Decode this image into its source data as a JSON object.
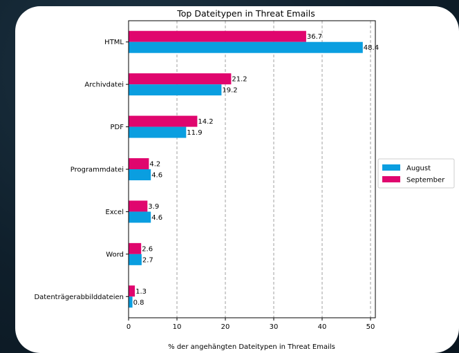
{
  "chart_data": {
    "type": "bar",
    "orientation": "horizontal",
    "title": "Top Dateitypen in Threat Emails",
    "xlabel": "% der angehängten Dateitypen in Threat Emails",
    "ylabel": "",
    "categories": [
      "HTML",
      "Archivdatei",
      "PDF",
      "Programmdatei",
      "Excel",
      "Word",
      "Datenträgerabbilddateien"
    ],
    "series": [
      {
        "name": "August",
        "color": "#0a9ee0",
        "values": [
          48.4,
          19.2,
          11.9,
          4.6,
          4.6,
          2.7,
          0.8
        ]
      },
      {
        "name": "September",
        "color": "#e0066e",
        "values": [
          36.7,
          21.2,
          14.2,
          4.2,
          3.9,
          2.6,
          1.3
        ]
      }
    ],
    "xlim": [
      0,
      51
    ],
    "xticks": [
      0,
      10,
      20,
      30,
      40,
      50
    ],
    "grid": "x-dashed",
    "legend": "right"
  }
}
